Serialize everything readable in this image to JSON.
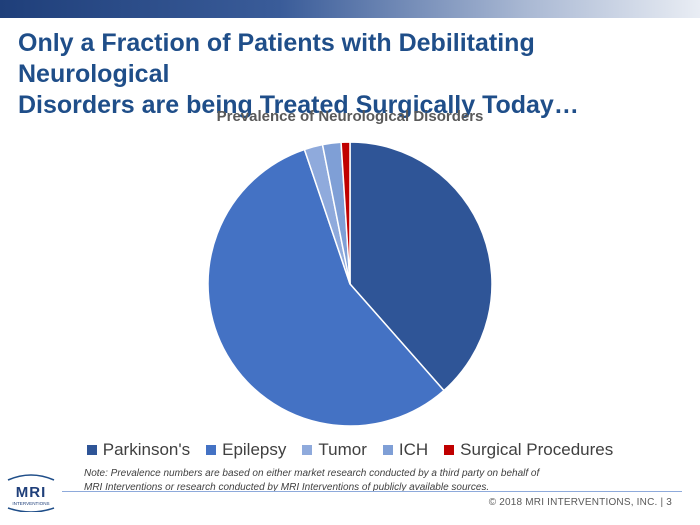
{
  "slide": {
    "title_line1": "Only a Fraction of Patients with Debilitating Neurological",
    "title_line2": "Disorders are being Treated Surgically Today…",
    "note_line1": "Note: Prevalence numbers are based on either market research conducted by a third party on behalf of",
    "note_line2": "MRI Interventions or research conducted by MRI Interventions of publicly available sources.",
    "footer": "© 2018 MRI INTERVENTIONS, INC.   |   3",
    "logo_text": "MRI",
    "logo_subtext": "INTERVENTIONS",
    "accent_color": "#1f4e89"
  },
  "chart_data": {
    "type": "pie",
    "title": "Prevalence of Neurological Disorders",
    "categories": [
      "Parkinson's",
      "Epilepsy",
      "Tumor",
      "ICH",
      "Surgical Procedures"
    ],
    "values": [
      38.5,
      56.3,
      2.1,
      2.1,
      1.0
    ],
    "colors": [
      "#2f5597",
      "#4472c4",
      "#8faadc",
      "#7f9fd6",
      "#c00000"
    ],
    "start_angle_deg": 0,
    "direction": "clockwise",
    "legend_position": "bottom"
  }
}
